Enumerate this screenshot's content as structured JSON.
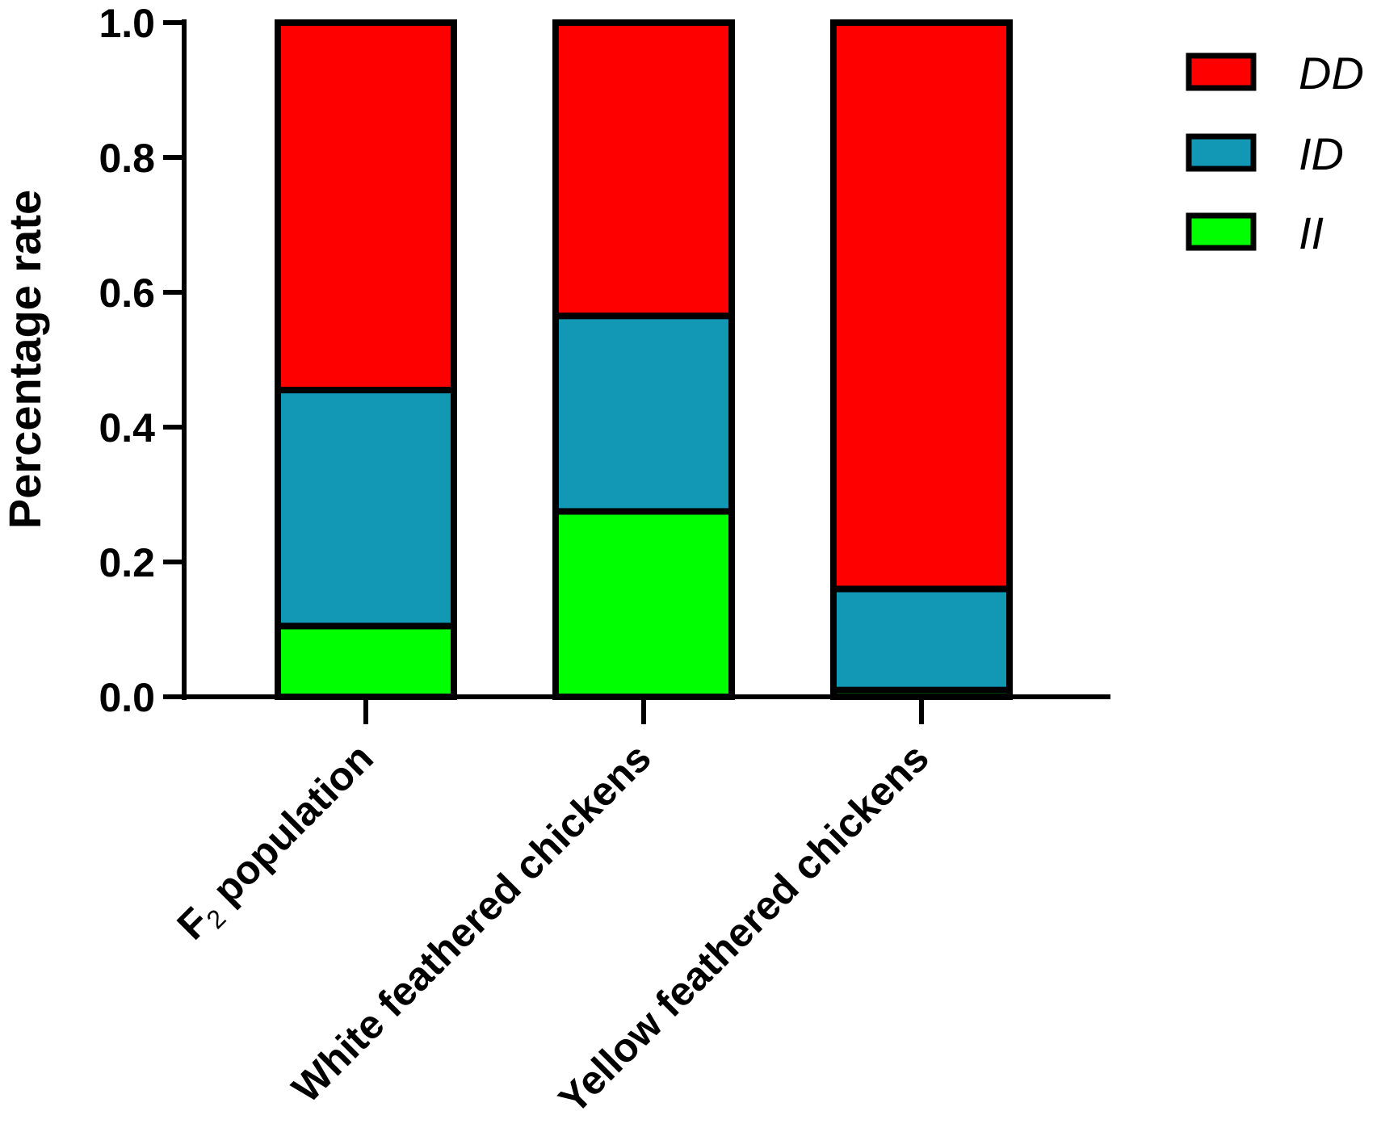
{
  "chart_data": {
    "type": "bar",
    "stacked": true,
    "title": "",
    "ylabel": "Percentage rate",
    "xlabel": "",
    "ylim": [
      0,
      1.0
    ],
    "yticks": [
      "0.0",
      "0.2",
      "0.4",
      "0.6",
      "0.8",
      "1.0"
    ],
    "grid": false,
    "legend_position": "top-right",
    "categories": [
      {
        "main": "F",
        "sub": "2",
        "rest": " population"
      },
      {
        "main": "White feathered chickens",
        "sub": "",
        "rest": ""
      },
      {
        "main": "Yellow feathered chickens",
        "sub": "",
        "rest": ""
      }
    ],
    "series": [
      {
        "name": "II",
        "color": "#00ff00",
        "values": [
          0.105,
          0.275,
          0.01
        ]
      },
      {
        "name": "ID",
        "color": "#1297b4",
        "values": [
          0.35,
          0.29,
          0.15
        ]
      },
      {
        "name": "DD",
        "color": "#ff0000",
        "values": [
          0.545,
          0.435,
          0.84
        ]
      }
    ],
    "legend_order": [
      "DD",
      "ID",
      "II"
    ]
  }
}
